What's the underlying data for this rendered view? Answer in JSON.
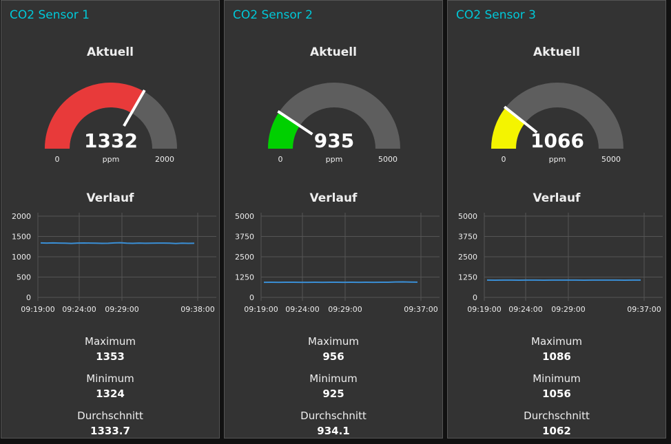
{
  "cards": [
    {
      "title": "CO2 Sensor 1",
      "gauge": {
        "label": "Aktuell",
        "value": 1332,
        "value_text": "1332",
        "min": 0,
        "max": 2000,
        "min_text": "0",
        "max_text": "2000",
        "unit": "ppm",
        "color": "#e83a3a"
      },
      "chart": {
        "label": "Verlauf",
        "ymax": 2000,
        "yticks": [
          "2000",
          "1500",
          "1000",
          "500",
          "0"
        ],
        "xticks": [
          "09:19:00",
          "09:24:00",
          "09:29:00",
          "09:38:00"
        ],
        "x_range": [
          "09:19:00",
          "09:38:00"
        ],
        "series": [
          1340,
          1338,
          1341,
          1337,
          1336,
          1328,
          1338,
          1339,
          1337,
          1336,
          1330,
          1333,
          1340,
          1345,
          1335,
          1330,
          1338,
          1332,
          1336,
          1338,
          1337,
          1335,
          1326,
          1334,
          1330,
          1333
        ]
      },
      "stats": [
        {
          "label": "Maximum",
          "value": "1353"
        },
        {
          "label": "Minimum",
          "value": "1324"
        },
        {
          "label": "Durchschnitt",
          "value": "1333.7"
        }
      ]
    },
    {
      "title": "CO2 Sensor 2",
      "gauge": {
        "label": "Aktuell",
        "value": 935,
        "value_text": "935",
        "min": 0,
        "max": 5000,
        "min_text": "0",
        "max_text": "5000",
        "unit": "ppm",
        "color": "#00d000"
      },
      "chart": {
        "label": "Verlauf",
        "ymax": 5000,
        "yticks": [
          "5000",
          "3750",
          "2500",
          "1250",
          "0"
        ],
        "xticks": [
          "09:19:00",
          "09:24:00",
          "09:29:00",
          "09:37:00"
        ],
        "x_range": [
          "09:19:00",
          "09:37:00"
        ],
        "series": [
          930,
          931,
          930,
          932,
          931,
          930,
          930,
          931,
          930,
          931,
          932,
          930,
          931,
          930,
          931,
          930,
          931,
          932,
          950,
          955,
          940,
          935
        ]
      },
      "stats": [
        {
          "label": "Maximum",
          "value": "956"
        },
        {
          "label": "Minimum",
          "value": "925"
        },
        {
          "label": "Durchschnitt",
          "value": "934.1"
        }
      ]
    },
    {
      "title": "CO2 Sensor 3",
      "gauge": {
        "label": "Aktuell",
        "value": 1066,
        "value_text": "1066",
        "min": 0,
        "max": 5000,
        "min_text": "0",
        "max_text": "5000",
        "unit": "ppm",
        "color": "#f4f400"
      },
      "chart": {
        "label": "Verlauf",
        "ymax": 5000,
        "yticks": [
          "5000",
          "3750",
          "2500",
          "1250",
          "0"
        ],
        "xticks": [
          "09:19:00",
          "09:24:00",
          "09:29:00",
          "09:37:00"
        ],
        "x_range": [
          "09:19:00",
          "09:37:00"
        ],
        "series": [
          1062,
          1061,
          1062,
          1062,
          1061,
          1062,
          1062,
          1061,
          1062,
          1062,
          1063,
          1062,
          1061,
          1062,
          1062,
          1063,
          1062,
          1061,
          1062,
          1062
        ]
      },
      "stats": [
        {
          "label": "Maximum",
          "value": "1086"
        },
        {
          "label": "Minimum",
          "value": "1056"
        },
        {
          "label": "Durchschnitt",
          "value": "1062"
        }
      ]
    }
  ],
  "colors": {
    "background": "#333333",
    "title": "#00c8d8",
    "gauge_track": "#5e5e5e",
    "series_line": "#3a8fd6",
    "grid": "#555555"
  }
}
